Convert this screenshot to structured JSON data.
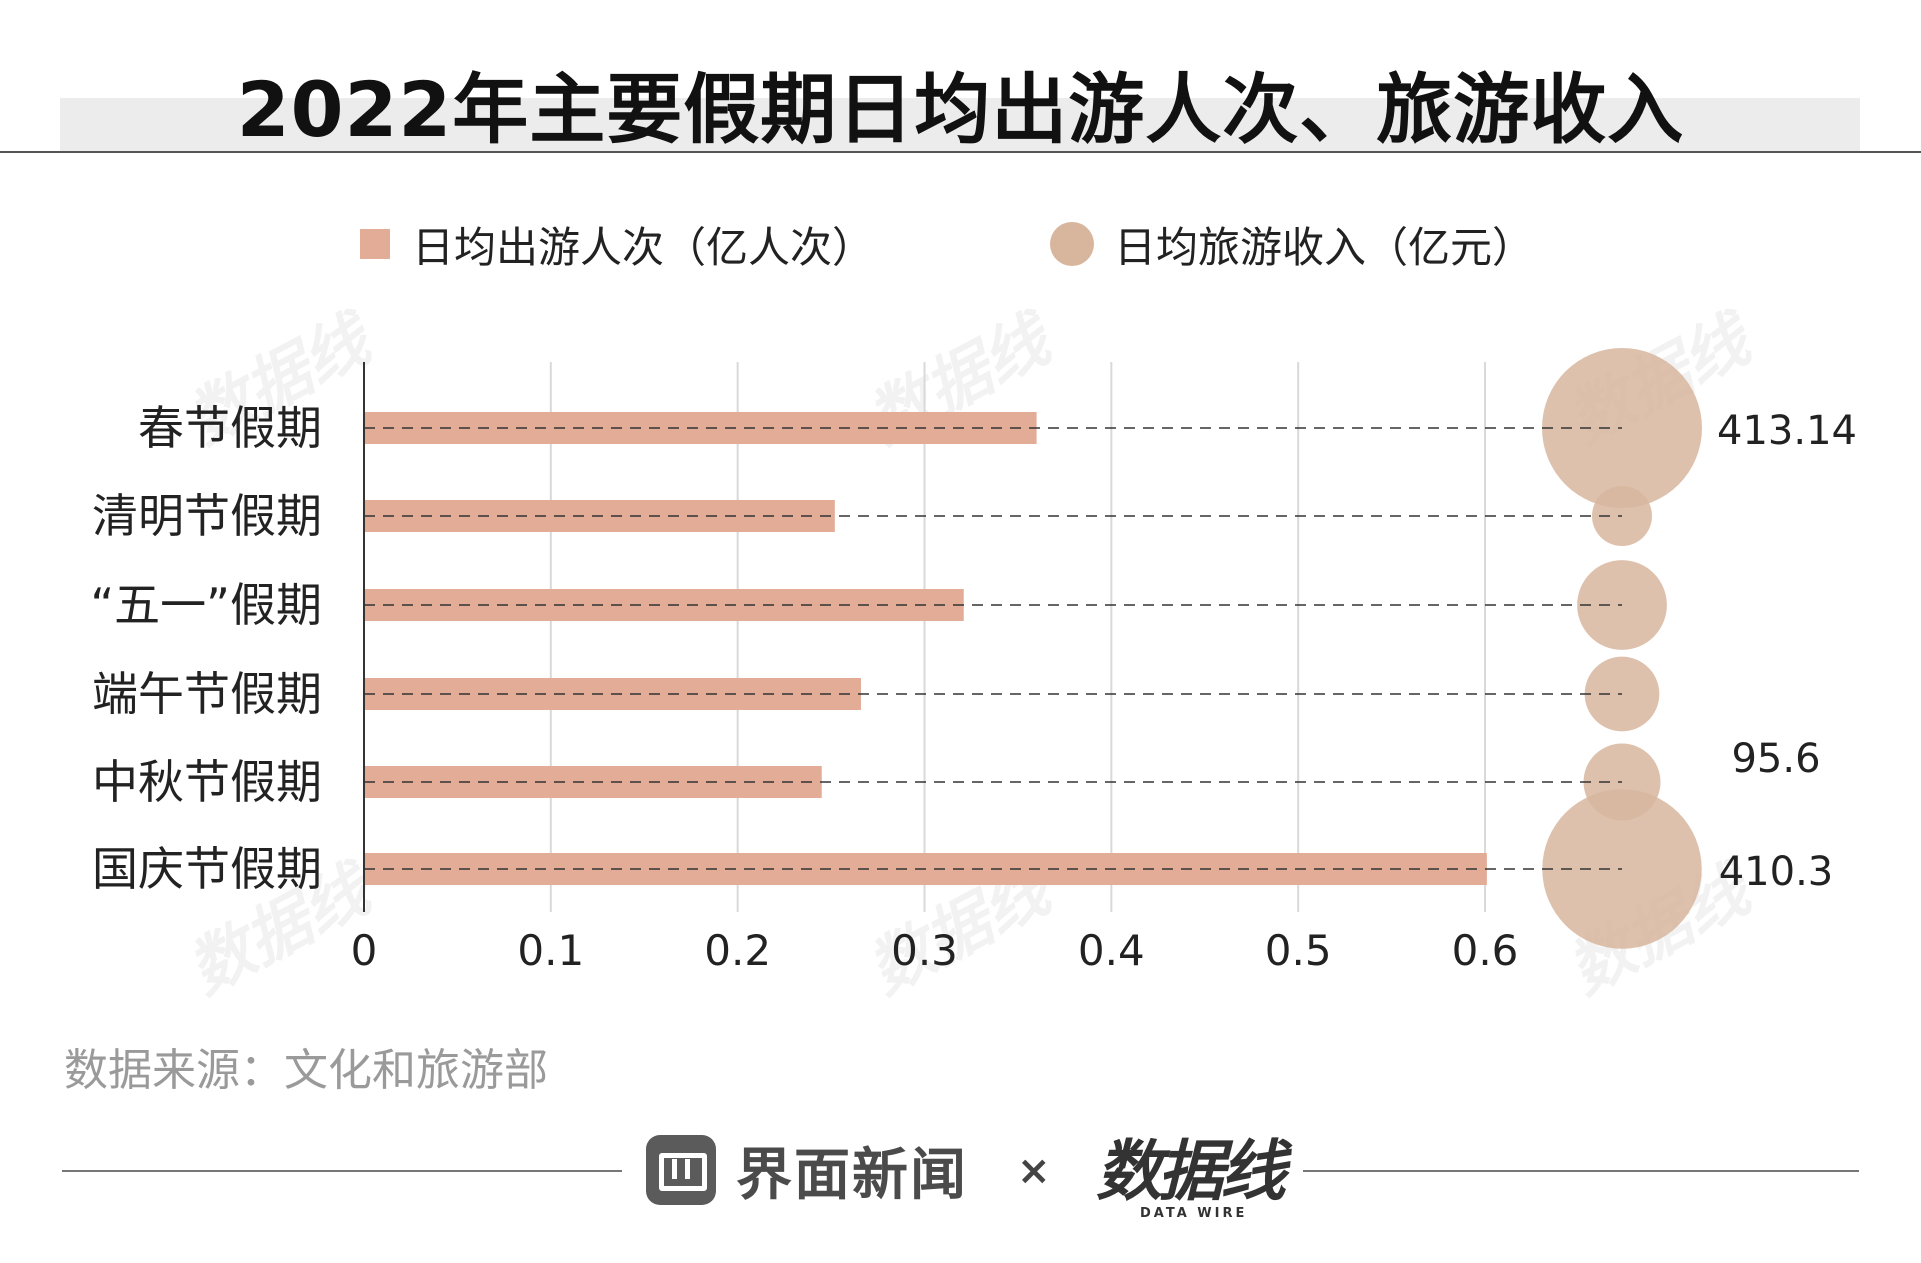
{
  "title": "2022年主要假期日均出游人次、旅游收入",
  "legend": {
    "bar_label": "日均出游人次（亿人次）",
    "bubble_label": "日均旅游收入（亿元）"
  },
  "colors": {
    "bar": "#e2ac97",
    "bubble": "#d7b69d",
    "grid": "#d9d9d9",
    "axis": "#333333",
    "dash": "#333333"
  },
  "chart_data": {
    "type": "bar",
    "orientation": "horizontal",
    "categories": [
      "春节假期",
      "清明节假期",
      "“五一”假期",
      "端午节假期",
      "中秋节假期",
      "国庆节假期"
    ],
    "series": [
      {
        "name": "日均出游人次（亿人次）",
        "values": [
          0.36,
          0.252,
          0.321,
          0.266,
          0.245,
          0.601
        ]
      },
      {
        "name": "日均旅游收入（亿元）",
        "marker": "bubble",
        "values": [
          413.14,
          50,
          130,
          90,
          95.6,
          410.3
        ]
      }
    ],
    "data_labels": [
      "413.14",
      "",
      "",
      "",
      "95.6",
      "410.3"
    ],
    "xlim": [
      0,
      0.6
    ],
    "x_ticks": [
      "0",
      "0.1",
      "0.2",
      "0.3",
      "0.4",
      "0.5",
      "0.6"
    ],
    "grid": true
  },
  "source": "数据来源：文化和旅游部",
  "footer": {
    "brand": "界面新闻",
    "times": "×",
    "partner": "数据线",
    "partner_sub": "DATA WIRE"
  }
}
